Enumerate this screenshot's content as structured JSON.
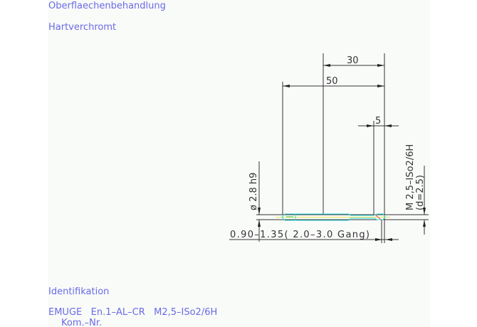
{
  "header": {
    "surface_label": "Oberflaechenbehandlung",
    "surface_value": "Hartverchromt"
  },
  "drawing": {
    "dim_30": "30",
    "dim_50": "50",
    "dim_5": "5",
    "diameter": "ø 2.8 h9",
    "thread": "M 2,5–ISo2/6H",
    "thread_d": "(d=2.5)",
    "chamfer": "0.90–1.35( 2.0–3.0  Gang)"
  },
  "footer": {
    "ident_label": "Identifikation",
    "ident_value": "EMUGE   En.1–AL–CR   M2,5–ISo2/6H",
    "kom_label": "Kom.–Nr."
  },
  "colors": {
    "text": "#6a6ae6",
    "tool_outline": "#30e0e0",
    "centerline": "#e8e060",
    "background": "#f9fbf9"
  }
}
